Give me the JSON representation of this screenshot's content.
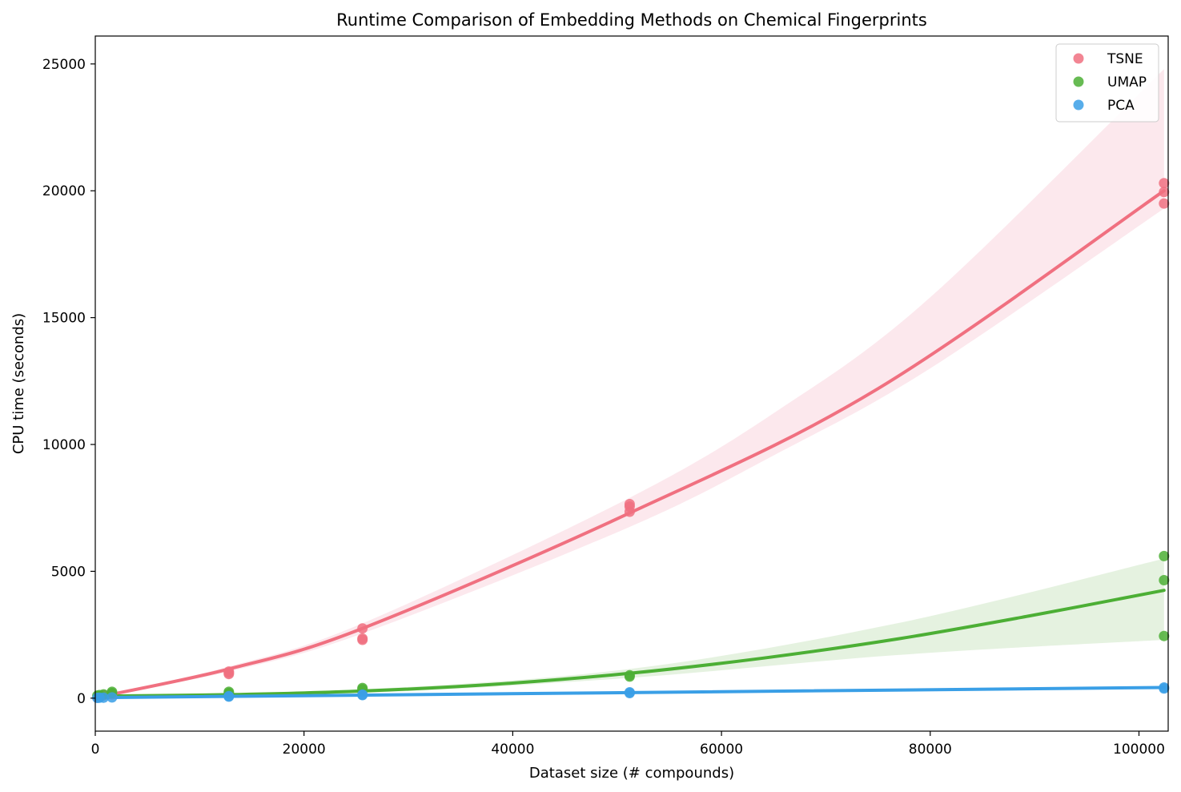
{
  "chart_data": {
    "type": "scatter",
    "title": "Runtime Comparison of Embedding Methods on Chemical Fingerprints",
    "xlabel": "Dataset size (# compounds)",
    "ylabel": "CPU time (seconds)",
    "xlim": [
      0,
      102800
    ],
    "ylim": [
      -1300,
      26100
    ],
    "xticks": [
      0,
      20000,
      40000,
      60000,
      80000,
      100000
    ],
    "yticks": [
      0,
      5000,
      10000,
      15000,
      20000,
      25000
    ],
    "grid": false,
    "legend_position": "top-right",
    "series": [
      {
        "name": "TSNE",
        "color": "#f07080",
        "band_color": "#fce4ea",
        "points": [
          [
            200,
            30
          ],
          [
            400,
            60
          ],
          [
            800,
            110
          ],
          [
            1600,
            150
          ],
          [
            12800,
            950
          ],
          [
            12800,
            1000
          ],
          [
            12800,
            1050
          ],
          [
            25600,
            2300
          ],
          [
            25600,
            2350
          ],
          [
            25600,
            2750
          ],
          [
            51200,
            7350
          ],
          [
            51200,
            7550
          ],
          [
            51200,
            7650
          ],
          [
            102400,
            19500
          ],
          [
            102400,
            19950
          ],
          [
            102400,
            20300
          ]
        ],
        "fit": [
          [
            0,
            20
          ],
          [
            12800,
            1150
          ],
          [
            25600,
            2750
          ],
          [
            51200,
            7300
          ],
          [
            75000,
            12200
          ],
          [
            102400,
            20000
          ]
        ],
        "band_lower": [
          [
            0,
            0
          ],
          [
            12800,
            1050
          ],
          [
            25600,
            2550
          ],
          [
            51200,
            6750
          ],
          [
            65600,
            9700
          ],
          [
            80000,
            13000
          ],
          [
            102400,
            19300
          ]
        ],
        "band_upper": [
          [
            0,
            40
          ],
          [
            12800,
            1250
          ],
          [
            25600,
            2950
          ],
          [
            51200,
            7900
          ],
          [
            65600,
            11400
          ],
          [
            80000,
            15800
          ],
          [
            102400,
            24800
          ]
        ]
      },
      {
        "name": "UMAP",
        "color": "#4caf35",
        "band_color": "#e0f0da",
        "points": [
          [
            200,
            100
          ],
          [
            400,
            120
          ],
          [
            800,
            150
          ],
          [
            1600,
            200
          ],
          [
            1600,
            250
          ],
          [
            12800,
            200
          ],
          [
            12800,
            250
          ],
          [
            25600,
            350
          ],
          [
            25600,
            400
          ],
          [
            51200,
            850
          ],
          [
            51200,
            900
          ],
          [
            102400,
            2450
          ],
          [
            102400,
            4650
          ],
          [
            102400,
            5600
          ]
        ],
        "fit": [
          [
            0,
            80
          ],
          [
            12800,
            140
          ],
          [
            25600,
            280
          ],
          [
            38400,
            550
          ],
          [
            51200,
            980
          ],
          [
            64000,
            1580
          ],
          [
            76800,
            2330
          ],
          [
            89600,
            3250
          ],
          [
            102400,
            4250
          ]
        ],
        "band_lower": [
          [
            0,
            60
          ],
          [
            25600,
            210
          ],
          [
            51200,
            800
          ],
          [
            76800,
            1700
          ],
          [
            102400,
            2300
          ]
        ],
        "band_upper": [
          [
            0,
            100
          ],
          [
            25600,
            350
          ],
          [
            51200,
            1150
          ],
          [
            76800,
            2950
          ],
          [
            102400,
            5500
          ]
        ]
      },
      {
        "name": "PCA",
        "color": "#3a9fe6",
        "band_color": "#d5e9f8",
        "points": [
          [
            200,
            10
          ],
          [
            400,
            15
          ],
          [
            800,
            20
          ],
          [
            1600,
            30
          ],
          [
            12800,
            60
          ],
          [
            12800,
            80
          ],
          [
            25600,
            120
          ],
          [
            25600,
            140
          ],
          [
            51200,
            200
          ],
          [
            51200,
            230
          ],
          [
            102400,
            380
          ],
          [
            102400,
            420
          ]
        ],
        "fit": [
          [
            0,
            20
          ],
          [
            102400,
            420
          ]
        ],
        "band_lower": [
          [
            0,
            5
          ],
          [
            102400,
            390
          ]
        ],
        "band_upper": [
          [
            0,
            35
          ],
          [
            102400,
            450
          ]
        ]
      }
    ]
  }
}
